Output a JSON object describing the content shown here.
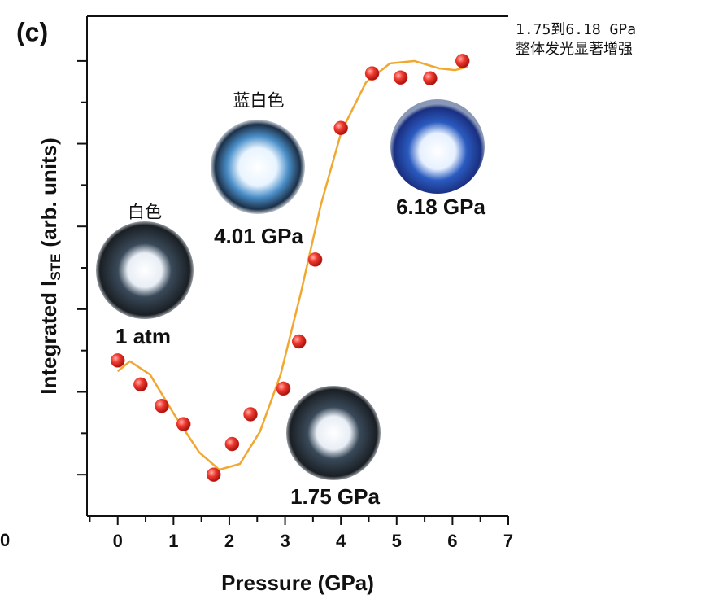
{
  "chart_data": {
    "type": "scatter",
    "panel_label": "(c)",
    "xlabel": "Pressure (GPa)",
    "ylabel": "Integrated I",
    "ylabel_sub": "STE",
    "ylabel_end": "(arb. units)",
    "corner_label": "0",
    "x": [
      0,
      0.41,
      0.79,
      1.18,
      1.72,
      2.05,
      2.38,
      2.97,
      3.25,
      3.54,
      4.0,
      4.56,
      5.07,
      5.6,
      6.18
    ],
    "values": [
      2.38,
      2.09,
      1.83,
      1.61,
      1.0,
      1.37,
      1.73,
      2.04,
      2.61,
      3.6,
      5.19,
      5.85,
      5.8,
      5.79,
      6.0
    ],
    "color": "#e8322c",
    "fit": {
      "color": "#f0a830",
      "x": [
        0,
        0.22,
        0.58,
        1.02,
        1.46,
        1.82,
        2.19,
        2.55,
        2.92,
        3.28,
        3.64,
        4.01,
        4.45,
        4.88,
        5.32,
        5.76,
        6.05,
        6.27
      ],
      "y": [
        2.25,
        2.37,
        2.21,
        1.72,
        1.27,
        1.06,
        1.13,
        1.52,
        2.21,
        3.19,
        4.26,
        5.15,
        5.74,
        5.97,
        6.0,
        5.91,
        5.89,
        5.93
      ]
    },
    "xlim": [
      -0.55,
      7
    ],
    "xticks": [
      0,
      1,
      2,
      3,
      4,
      5,
      6,
      7
    ],
    "xticks_minor": [
      -0.5,
      0.5,
      1.5,
      2.5,
      3.5,
      4.5,
      5.5,
      6.5
    ],
    "ylim": [
      0.5,
      6.54
    ],
    "yticks": [
      1,
      2,
      3,
      4,
      5,
      6
    ],
    "yticks_minor": [
      1.5,
      2.5,
      3.5,
      4.5,
      5.5
    ],
    "insets": [
      {
        "label": "1 atm",
        "color_label": "白色"
      },
      {
        "label": "4.01 GPa",
        "color_label": "蓝白色"
      },
      {
        "label": "6.18 GPa"
      },
      {
        "label": "1.75 GPa"
      }
    ],
    "annotation": [
      "1.75到6.18 GPa",
      "整体发光显著增强"
    ]
  }
}
